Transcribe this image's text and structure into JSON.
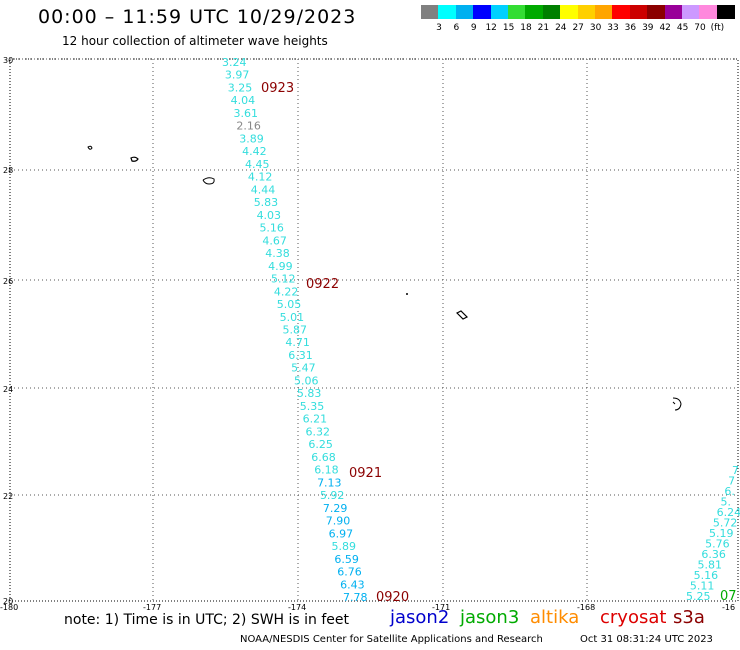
{
  "header": {
    "title": "00:00 – 11:59 UTC 10/29/2023",
    "subtitle": "12 hour collection of altimeter wave heights"
  },
  "scale": {
    "colors": [
      "#808080",
      "#00ffff",
      "#00b0f0",
      "#0000ff",
      "#00d0ff",
      "#33dd33",
      "#00aa00",
      "#008000",
      "#ffff00",
      "#ffd000",
      "#ffa500",
      "#ff0000",
      "#cc0000",
      "#8b0000",
      "#990099",
      "#cc99ff",
      "#ff88dd",
      "#000000"
    ],
    "labels": [
      "3",
      "6",
      "9",
      "12",
      "15",
      "18",
      "21",
      "24",
      "27",
      "30",
      "33",
      "36",
      "39",
      "42",
      "45",
      "70",
      "(ft)"
    ]
  },
  "axes": {
    "y_labels": [
      "30",
      "28",
      "26",
      "24",
      "22",
      "20"
    ],
    "x_labels": [
      "-180",
      "-177",
      "-174",
      "-171",
      "-168",
      "-16"
    ]
  },
  "track_main": {
    "values": [
      "3.24",
      "3.97",
      "3.25",
      "4.04",
      "3.61",
      "2.16",
      "3.89",
      "4.42",
      "4.45",
      "4.12",
      "4.44",
      "5.83",
      "4.03",
      "5.16",
      "4.67",
      "4.38",
      "4.99",
      "5.12",
      "4.22",
      "5.05",
      "5.01",
      "5.87",
      "4.71",
      "6.31",
      "5.47",
      "5.06",
      "5.83",
      "5.35",
      "6.21",
      "6.32",
      "6.25",
      "6.68",
      "6.18",
      "7.13",
      "5.92",
      "7.29",
      "7.90",
      "6.97",
      "5.89",
      "6.59",
      "6.76",
      "6.43",
      "7.78"
    ],
    "colors": [
      "#33dddd",
      "#33dddd",
      "#33dddd",
      "#33dddd",
      "#33dddd",
      "#888888",
      "#33dddd",
      "#33dddd",
      "#33dddd",
      "#33dddd",
      "#33dddd",
      "#33dddd",
      "#33dddd",
      "#33dddd",
      "#33dddd",
      "#33dddd",
      "#33dddd",
      "#33dddd",
      "#33dddd",
      "#33dddd",
      "#33dddd",
      "#33dddd",
      "#33dddd",
      "#33dddd",
      "#33dddd",
      "#33dddd",
      "#33dddd",
      "#33dddd",
      "#33dddd",
      "#33dddd",
      "#33dddd",
      "#33dddd",
      "#33dddd",
      "#00b0f0",
      "#33dddd",
      "#00b0f0",
      "#00b0f0",
      "#00b0f0",
      "#33dddd",
      "#00b0f0",
      "#00b0f0",
      "#00b0f0",
      "#00b0f0"
    ]
  },
  "track_east": {
    "values": [
      "7",
      "7",
      "6.",
      "5.",
      "6.24",
      "5.72",
      "5.19",
      "5.76",
      "6.36",
      "5.81",
      "5.16",
      "5.11",
      "5.25"
    ],
    "extra_label": "07"
  },
  "time_labels": [
    "0923",
    "0922",
    "0921",
    "0920"
  ],
  "footer": {
    "note": "note:  1) Time is in UTC; 2) SWH is in feet",
    "satellites": [
      {
        "name": "jason2",
        "color": "#0000cc"
      },
      {
        "name": "jason3",
        "color": "#00aa00"
      },
      {
        "name": "altika",
        "color": "#ff8c00"
      },
      {
        "name": "cryosat",
        "color": "#dd0000"
      },
      {
        "name": "s3a",
        "color": "#8b0000"
      }
    ],
    "credit": "NOAA/NESDIS Center for Satellite Applications and Research",
    "timestamp": "Oct 31 08:31:24 UTC 2023"
  }
}
